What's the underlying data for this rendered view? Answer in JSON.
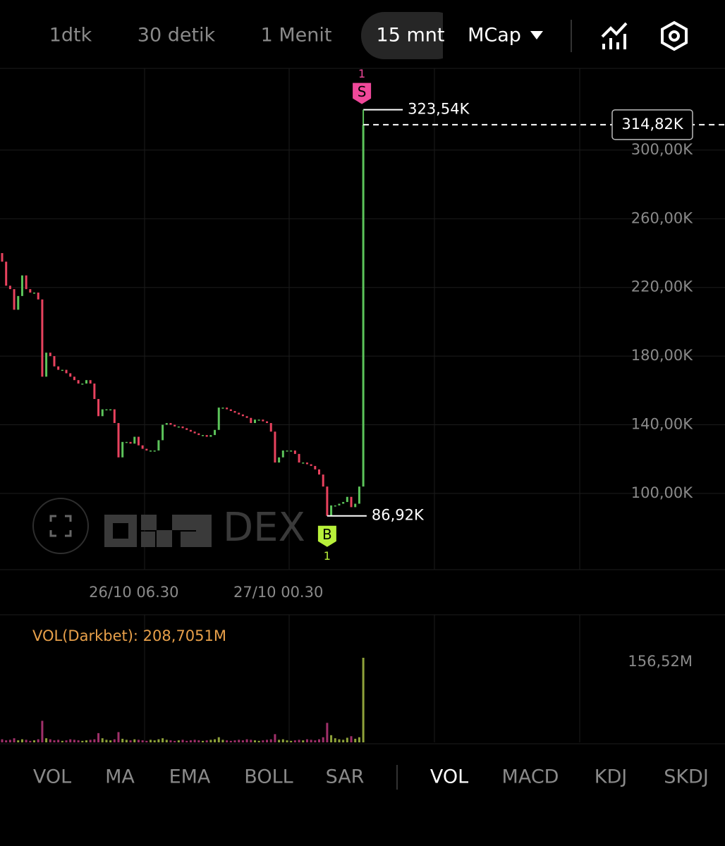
{
  "toolbar": {
    "intervals": [
      "1dtk",
      "30 detik",
      "1 Menit",
      "15 mnt"
    ],
    "metric": "MCap"
  },
  "chart_data": {
    "type": "candlestick",
    "categories": [
      null,
      null,
      null,
      null,
      null,
      null,
      null,
      null,
      null,
      null,
      null,
      null,
      null,
      null,
      null,
      null,
      null,
      null,
      null,
      null,
      null,
      null,
      null,
      null,
      null,
      null,
      null,
      null,
      null,
      null,
      null,
      null,
      null,
      null,
      null,
      null,
      "26/10 06.30",
      null,
      null,
      null,
      null,
      null,
      null,
      null,
      null,
      null,
      null,
      null,
      null,
      null,
      null,
      null,
      null,
      null,
      null,
      null,
      null,
      null,
      null,
      null,
      null,
      null,
      null,
      null,
      null,
      null,
      null,
      null,
      null,
      null,
      null,
      null,
      "27/10 00.30",
      null,
      null,
      null,
      null,
      null,
      null,
      null,
      null,
      null,
      null,
      null,
      null,
      null,
      null,
      null,
      null,
      null,
      null
    ],
    "open": [
      240,
      235,
      221,
      219,
      207,
      215,
      227,
      219,
      217,
      217,
      213,
      168,
      182,
      180,
      174,
      172,
      172,
      170,
      168,
      166,
      164,
      164,
      166,
      164,
      155,
      145,
      149,
      149,
      149,
      141,
      121,
      130,
      130,
      129,
      133,
      128,
      126,
      125,
      125,
      125,
      131,
      140,
      141,
      140,
      139,
      139,
      138,
      137,
      136,
      135,
      134,
      134,
      133,
      134,
      137,
      150,
      150,
      149,
      148,
      147,
      146,
      145,
      144,
      141,
      143,
      143,
      142,
      141,
      136,
      118,
      121,
      125,
      125,
      125,
      123,
      118,
      118,
      117,
      116,
      114,
      111,
      104,
      86.92,
      93,
      93,
      94,
      95,
      98,
      92,
      94,
      104
    ],
    "close": [
      235,
      221,
      219,
      207,
      215,
      227,
      219,
      217,
      217,
      213,
      168,
      182,
      180,
      174,
      172,
      172,
      170,
      168,
      166,
      164,
      164,
      166,
      164,
      155,
      145,
      149,
      149,
      149,
      141,
      121,
      130,
      130,
      129,
      133,
      128,
      126,
      125,
      125,
      125,
      131,
      140,
      141,
      140,
      139,
      139,
      138,
      137,
      136,
      135,
      134,
      134,
      133,
      134,
      137,
      150,
      150,
      149,
      148,
      147,
      146,
      145,
      144,
      141,
      143,
      143,
      142,
      141,
      136,
      118,
      121,
      125,
      125,
      125,
      123,
      118,
      118,
      117,
      116,
      114,
      111,
      104,
      86.92,
      93,
      93,
      94,
      95,
      98,
      92,
      94,
      104,
      314.82
    ],
    "up_color": "#5cc45a",
    "down_color": "#e8425e",
    "ylim": [
      55.6,
      347.6
    ],
    "yticks": [
      {
        "value": 100,
        "label": "100,00K"
      },
      {
        "value": 140,
        "label": "140,00K"
      },
      {
        "value": 180,
        "label": "180,00K"
      },
      {
        "value": 220,
        "label": "220,00K"
      },
      {
        "value": 260,
        "label": "260,00K"
      },
      {
        "value": 300,
        "label": "300,00K"
      }
    ],
    "grid": true,
    "max": {
      "value": 323.54,
      "label": "323,54K",
      "marker": "S",
      "marker_count": 1
    },
    "min": {
      "value": 86.92,
      "label": "86,92K",
      "marker": "B",
      "marker_count": 1
    },
    "last": {
      "value": 314.82,
      "label": "314,82K"
    },
    "volume": {
      "label": "VOL(Darkbet): 208,7051M",
      "values": [
        6,
        4,
        5,
        8,
        4,
        6,
        5,
        3,
        4,
        6,
        42,
        8,
        6,
        4,
        5,
        3,
        4,
        6,
        5,
        4,
        3,
        4,
        5,
        6,
        18,
        8,
        5,
        4,
        6,
        20,
        7,
        5,
        4,
        6,
        5,
        4,
        3,
        5,
        4,
        6,
        8,
        5,
        4,
        3,
        4,
        5,
        3,
        4,
        5,
        4,
        3,
        4,
        5,
        6,
        10,
        5,
        4,
        3,
        4,
        5,
        4,
        6,
        5,
        4,
        3,
        4,
        5,
        6,
        16,
        5,
        6,
        4,
        3,
        4,
        5,
        4,
        6,
        5,
        4,
        6,
        10,
        38,
        14,
        8,
        6,
        5,
        9,
        12,
        7,
        10,
        164.8
      ]
    },
    "y2lim": [
      0,
      248.6
    ],
    "y2ticks": [
      {
        "value": 156.52,
        "label": "156,52M"
      }
    ]
  },
  "watermark": "DEX",
  "indicators": {
    "main": [
      "VOL",
      "MA",
      "EMA",
      "BOLL",
      "SAR"
    ],
    "sub": [
      "VOL",
      "MACD",
      "KDJ",
      "SKDJ"
    ]
  }
}
